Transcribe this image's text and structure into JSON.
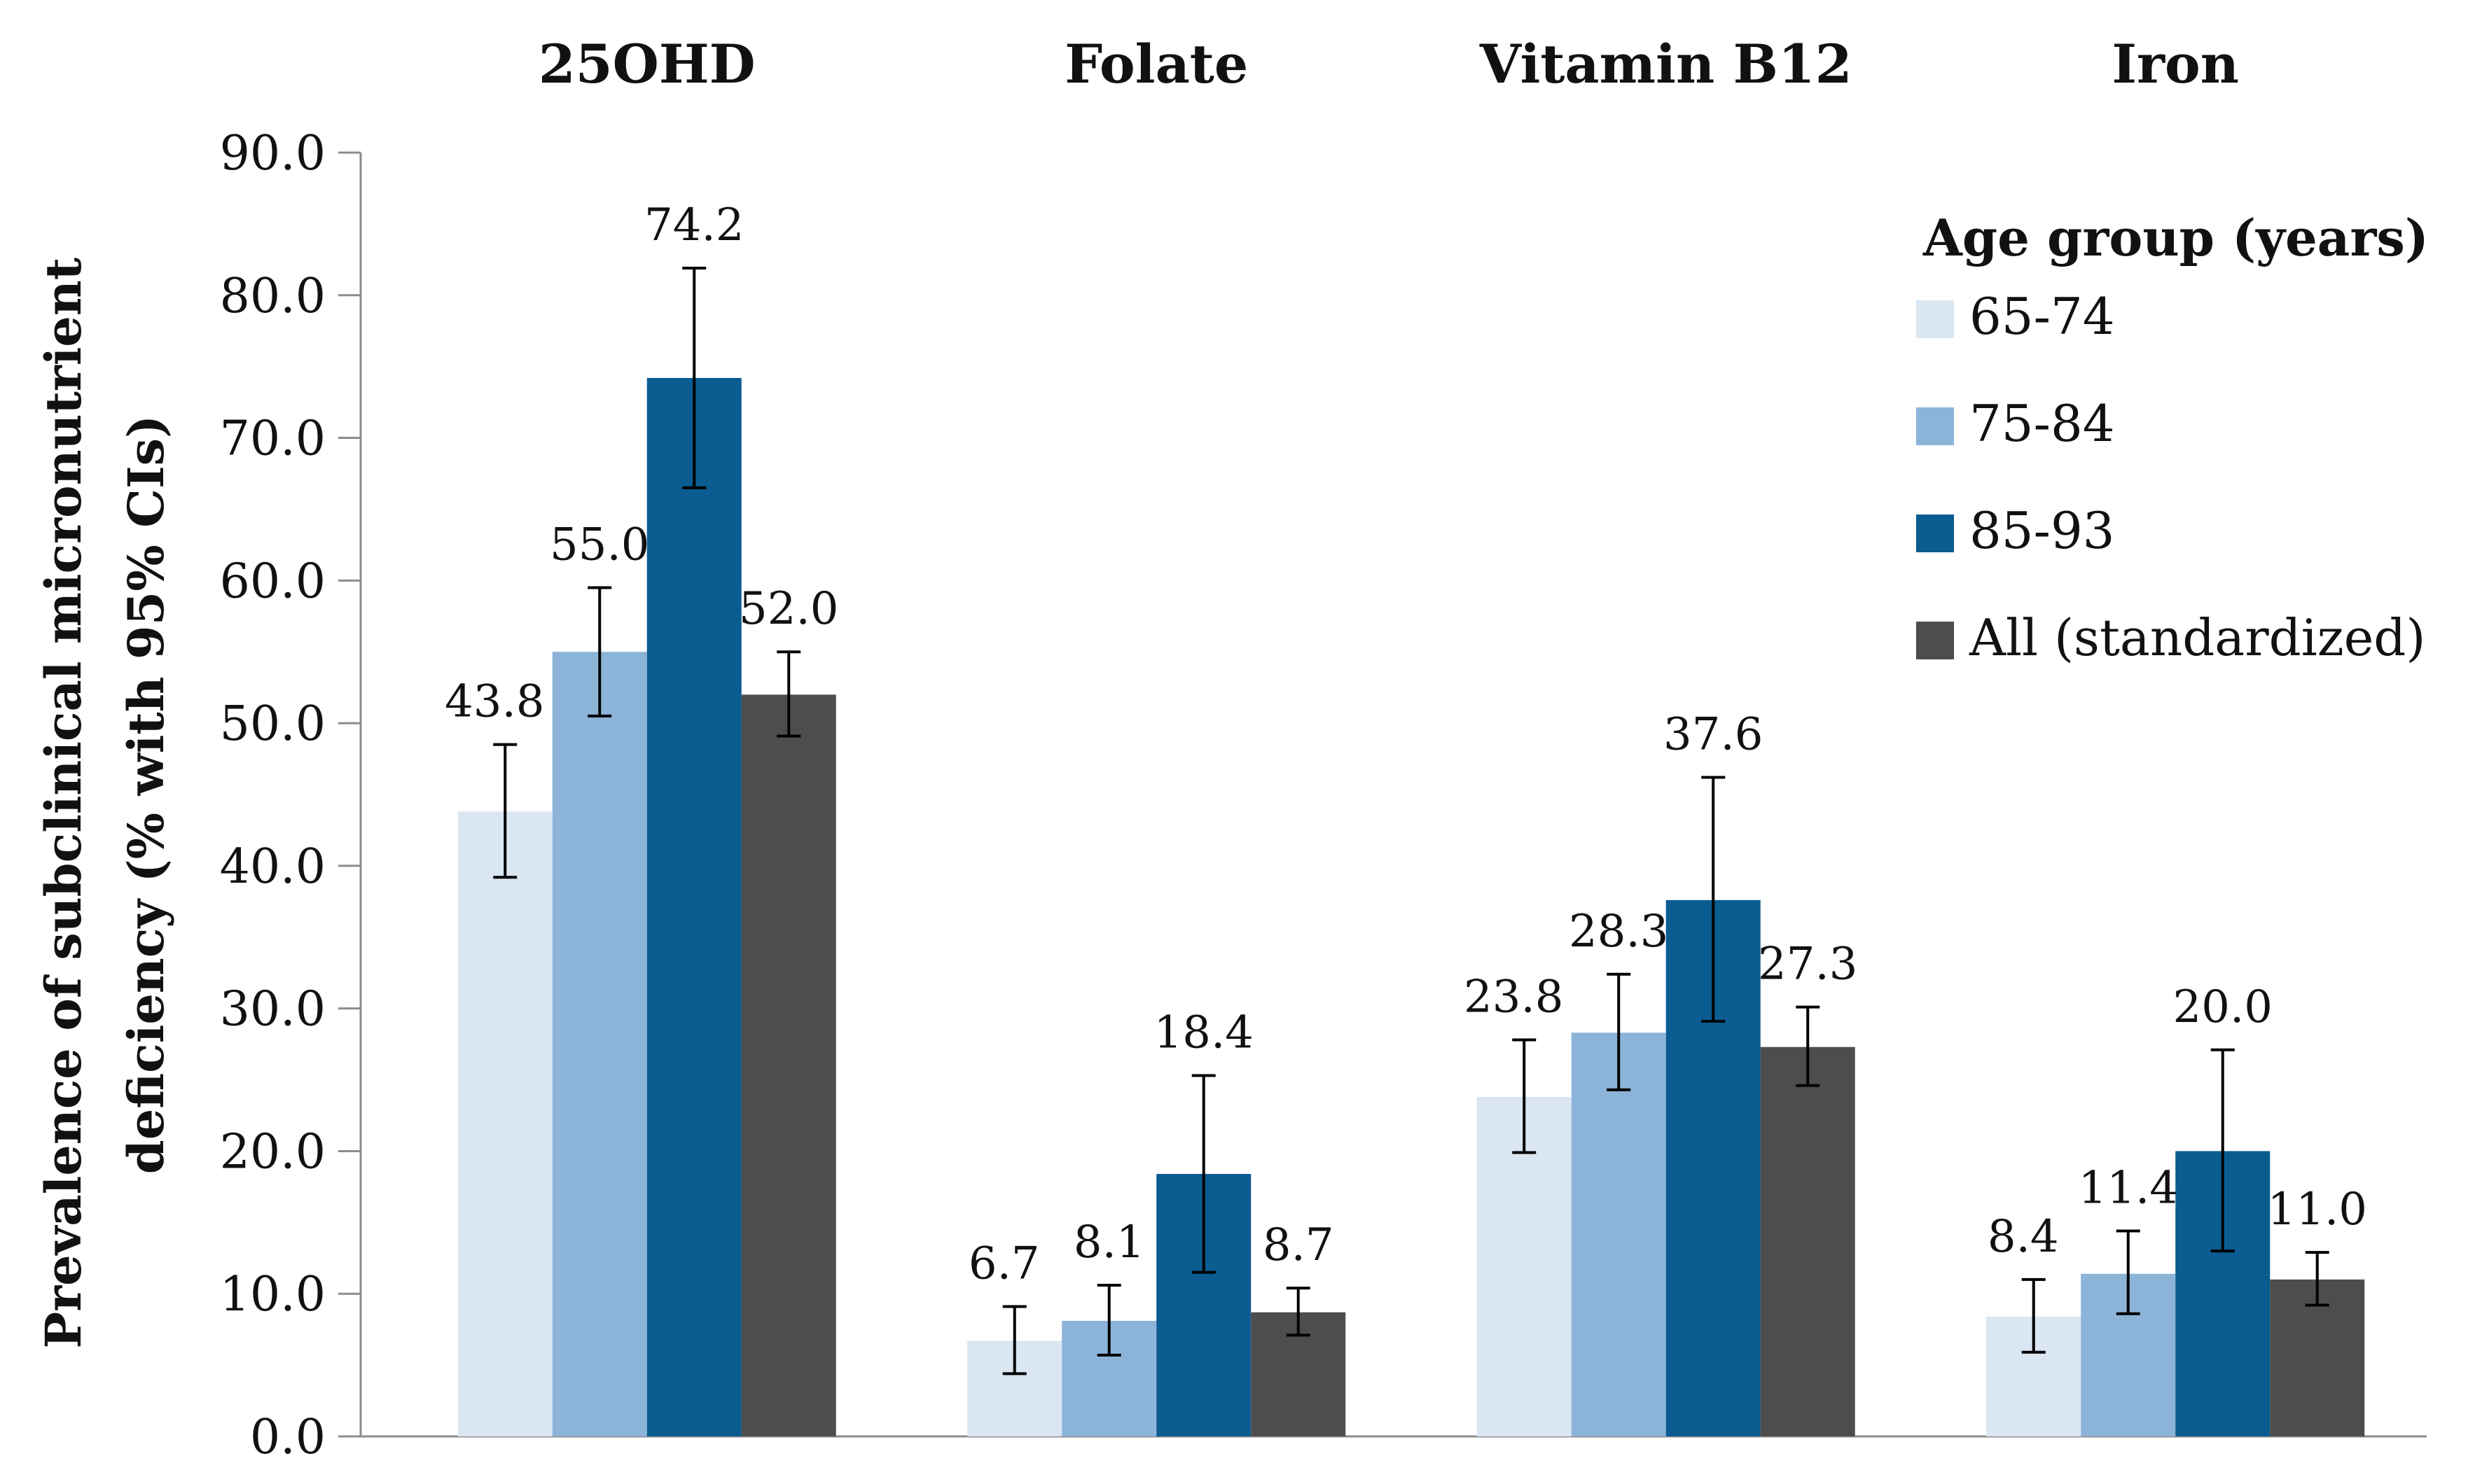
{
  "chart_data": {
    "type": "bar",
    "categories": [
      "25OHD",
      "Folate",
      "Vitamin B12",
      "Iron"
    ],
    "series": [
      {
        "name": "65-74",
        "color": "#dae6f2",
        "values": [
          43.8,
          6.7,
          23.8,
          8.4
        ],
        "ci_low": [
          39.2,
          4.4,
          19.9,
          5.9
        ],
        "ci_high": [
          48.5,
          9.1,
          27.8,
          11.0
        ]
      },
      {
        "name": "75-84",
        "color": "#8cb4d9",
        "values": [
          55.0,
          8.1,
          28.3,
          11.4
        ],
        "ci_low": [
          50.5,
          5.7,
          24.3,
          8.6
        ],
        "ci_high": [
          59.5,
          10.6,
          32.4,
          14.4
        ]
      },
      {
        "name": "85-93",
        "color": "#0a5c91",
        "values": [
          74.2,
          18.4,
          37.6,
          20.0
        ],
        "ci_low": [
          66.5,
          11.5,
          29.1,
          13.0
        ],
        "ci_high": [
          81.9,
          25.3,
          46.2,
          27.1
        ]
      },
      {
        "name": "All (standardized)",
        "color": "#4d4d4d",
        "values": [
          52.0,
          8.7,
          27.3,
          11.0
        ],
        "ci_low": [
          49.1,
          7.1,
          24.6,
          9.2
        ],
        "ci_high": [
          55.0,
          10.4,
          30.1,
          12.9
        ]
      }
    ],
    "value_labels": [
      [
        "43.8",
        "6.7",
        "23.8",
        "8.4"
      ],
      [
        "55.0",
        "8.1",
        "28.3",
        "11.4"
      ],
      [
        "74.2",
        "18.4",
        "37.6",
        "20.0"
      ],
      [
        "52.0",
        "8.7",
        "27.3",
        "11.0"
      ]
    ],
    "ylabel_line1": "Prevalence of subclinical micronutrient",
    "ylabel_line2": "deficiency (% with 95% CIs)",
    "ylim": [
      0,
      90
    ],
    "yticks": [
      "0.0",
      "10.0",
      "20.0",
      "30.0",
      "40.0",
      "50.0",
      "60.0",
      "70.0",
      "80.0",
      "90.0"
    ],
    "legend": {
      "title": "Age group (years)",
      "position": "top-right"
    },
    "grid": false
  }
}
